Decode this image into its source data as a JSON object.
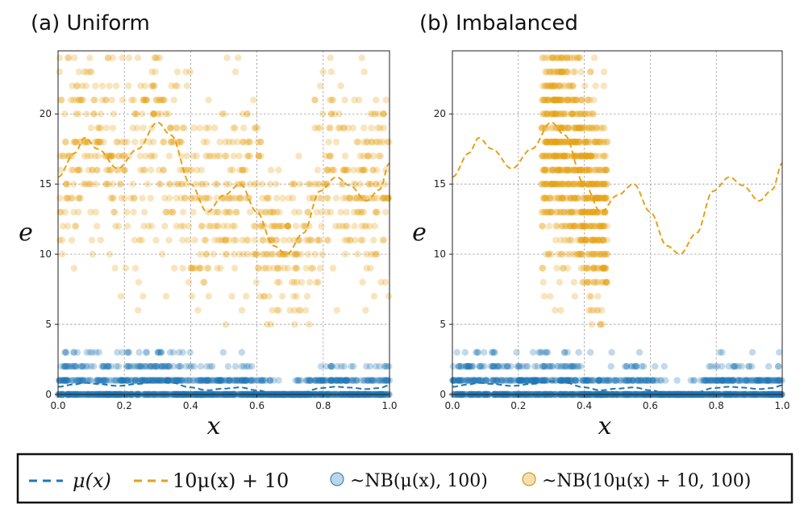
{
  "chart_data": [
    {
      "type": "scatter",
      "panel_id": "a",
      "title": "(a) Uniform",
      "xlabel": "x",
      "ylabel": "e",
      "xlim": [
        0.0,
        1.0
      ],
      "ylim": [
        0,
        24.5
      ],
      "xticks": [
        "0.0",
        "0.2",
        "0.4",
        "0.6",
        "0.8",
        "1.0"
      ],
      "xtick_values": [
        0.0,
        0.2,
        0.4,
        0.6,
        0.8,
        1.0
      ],
      "yticks": [
        "0",
        "5",
        "10",
        "15",
        "20"
      ],
      "ytick_values": [
        0,
        5,
        10,
        15,
        20
      ],
      "grid": true,
      "x_sampling": "uniform",
      "x_range": [
        0.0,
        1.0
      ],
      "series": [
        {
          "name": "~NB(μ(x), 100)",
          "kind": "scatter",
          "color": "#1f77b4",
          "mean": "mu"
        },
        {
          "name": "~NB(10μ(x) + 10, 100)",
          "kind": "scatter",
          "color": "#e6a117",
          "mean": "scaled"
        },
        {
          "name": "μ(x)",
          "kind": "dashed-line",
          "color": "#1f77b4",
          "curve": "mu"
        },
        {
          "name": "10μ(x) + 10",
          "kind": "dashed-line",
          "color": "#e6a117",
          "curve": "scaled"
        }
      ]
    },
    {
      "type": "scatter",
      "panel_id": "b",
      "title": "(b) Imbalanced",
      "xlabel": "x",
      "ylabel": "e",
      "xlim": [
        0.0,
        1.0
      ],
      "ylim": [
        0,
        24.5
      ],
      "xticks": [
        "0.0",
        "0.2",
        "0.4",
        "0.6",
        "0.8",
        "1.0"
      ],
      "xtick_values": [
        0.0,
        0.2,
        0.4,
        0.6,
        0.8,
        1.0
      ],
      "yticks": [
        "0",
        "5",
        "10",
        "15",
        "20"
      ],
      "ytick_values": [
        0,
        5,
        10,
        15,
        20
      ],
      "grid": true,
      "x_sampling": "imbalanced",
      "x_range_blue": [
        0.0,
        1.0
      ],
      "x_range_orange": [
        0.27,
        0.47
      ],
      "series": [
        {
          "name": "~NB(μ(x), 100)",
          "kind": "scatter",
          "color": "#1f77b4",
          "mean": "mu"
        },
        {
          "name": "~NB(10μ(x) + 10, 100)",
          "kind": "scatter",
          "color": "#e6a117",
          "mean": "scaled"
        },
        {
          "name": "μ(x)",
          "kind": "dashed-line",
          "color": "#1f77b4",
          "curve": "mu"
        },
        {
          "name": "10μ(x) + 10",
          "kind": "dashed-line",
          "color": "#e6a117",
          "curve": "scaled"
        }
      ]
    }
  ],
  "legend": {
    "placement": "bottom",
    "items": [
      {
        "label": "μ(x)",
        "kind": "dashed-line",
        "color": "#1f77b4"
      },
      {
        "label": "10μ(x) + 10",
        "kind": "dashed-line",
        "color": "#e6a117"
      },
      {
        "label": "~NB(μ(x), 100)",
        "kind": "marker",
        "color": "#1f77b4"
      },
      {
        "label": "~NB(10μ(x) + 10, 100)",
        "kind": "marker",
        "color": "#e6a117"
      }
    ]
  },
  "mu_curve": [
    [
      0.0,
      0.55
    ],
    [
      0.05,
      0.72
    ],
    [
      0.08,
      0.83
    ],
    [
      0.12,
      0.75
    ],
    [
      0.18,
      0.61
    ],
    [
      0.24,
      0.75
    ],
    [
      0.3,
      0.94
    ],
    [
      0.34,
      0.85
    ],
    [
      0.4,
      0.5
    ],
    [
      0.45,
      0.3
    ],
    [
      0.5,
      0.42
    ],
    [
      0.55,
      0.5
    ],
    [
      0.6,
      0.3
    ],
    [
      0.65,
      0.06
    ],
    [
      0.69,
      0.0
    ],
    [
      0.74,
      0.15
    ],
    [
      0.79,
      0.45
    ],
    [
      0.84,
      0.55
    ],
    [
      0.88,
      0.49
    ],
    [
      0.93,
      0.38
    ],
    [
      0.97,
      0.46
    ],
    [
      1.0,
      0.65
    ]
  ]
}
